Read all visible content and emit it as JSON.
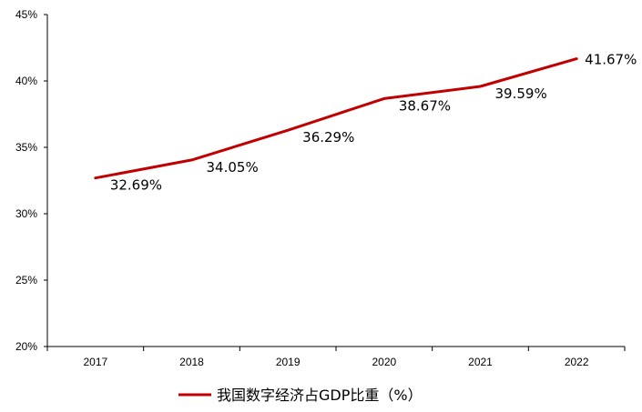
{
  "chart_data": {
    "type": "line",
    "categories": [
      "2017",
      "2018",
      "2019",
      "2020",
      "2021",
      "2022"
    ],
    "series": [
      {
        "name": "我国数字经济占GDP比重（%）",
        "values": [
          32.69,
          34.05,
          36.29,
          38.67,
          39.59,
          41.67
        ],
        "labels": [
          "32.69%",
          "34.05%",
          "36.29%",
          "38.67%",
          "39.59%",
          "41.67%"
        ],
        "color": "#C00000"
      }
    ],
    "yticks": [
      "20%",
      "25%",
      "30%",
      "35%",
      "40%",
      "45%"
    ],
    "ylim": [
      20,
      45
    ],
    "grid": false,
    "legend": "bottom-center"
  }
}
